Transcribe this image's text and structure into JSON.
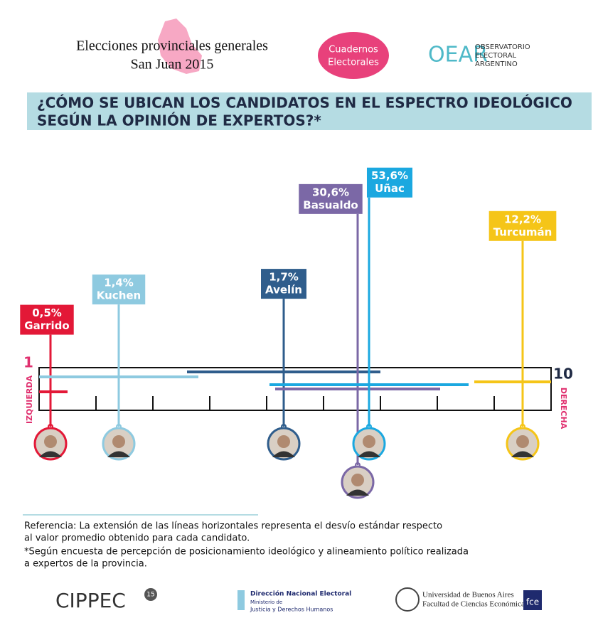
{
  "header": {
    "title_line1": "Elecciones provinciales generales",
    "title_line2": "San Juan 2015",
    "badge": [
      "Cuadernos",
      "Electorales"
    ],
    "logo_mark": "OEAR",
    "logo_text": [
      "OBSERVATORIO",
      "ELECTORAL",
      "ARGENTINO"
    ]
  },
  "chart_data": {
    "type": "spectrum",
    "title": [
      "¿CÓMO SE UBICAN LOS CANDIDATOS EN EL ESPECTRO IDEOLÓGICO",
      "SEGÚN LA OPINIÓN DE EXPERTOS?*"
    ],
    "x_left_label": "IZQUIERDA",
    "x_right_label": "DERECHA",
    "xlim": [
      1,
      10
    ],
    "xticks": [
      1,
      10
    ],
    "minor_xticks": [
      2,
      3,
      4,
      5,
      6,
      7,
      8,
      9
    ],
    "candidates": [
      "Garrido",
      "Kuchen",
      "Avelín",
      "Basualdo",
      "Uñac",
      "Turcumán"
    ],
    "colors": [
      "#e31837",
      "#8ecae0",
      "#2f5d8c",
      "#7b68a6",
      "#1ba8e0",
      "#f5c518"
    ],
    "positions": [
      1.2,
      2.4,
      5.3,
      6.6,
      6.8,
      9.5
    ],
    "std_devs": [
      0.3,
      1.4,
      1.7,
      1.45,
      1.75,
      0.85
    ],
    "vote_shares": [
      0.5,
      1.4,
      1.7,
      30.6,
      53.6,
      12.2
    ],
    "value_labels": [
      "0,5%",
      "1,4%",
      "1,7%",
      "30,6%",
      "53,6%",
      "12,2%"
    ]
  },
  "notes": [
    "Referencia:  La extensión de las líneas horizontales representa el desvío estándar respecto",
    "al valor promedio obtenido para cada candidato.",
    "*Según encuesta de percepción de posicionamiento ideológico y alineamiento político realizada",
    "a expertos de la provincia."
  ],
  "logos": {
    "cippec": "CIPPEC",
    "cippec_badge": "15",
    "dne": [
      "Dirección Nacional Electoral",
      "Ministerio de",
      "Justicia y Derechos Humanos"
    ],
    "uba": [
      "Universidad de Buenos Aires",
      "Facultad de Ciencias Económicas"
    ],
    "fce": "fce"
  }
}
